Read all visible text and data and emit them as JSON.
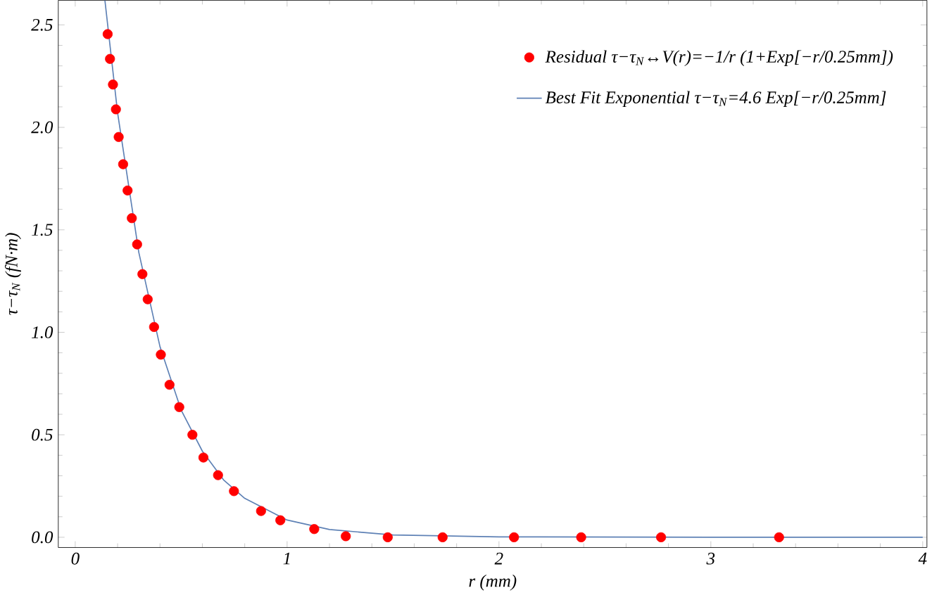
{
  "chart_data": {
    "type": "scatter",
    "xlabel": "r (mm)",
    "ylabel": "τ−τ$_{N}$  (fN·m)",
    "xlim": [
      -0.08,
      4.02
    ],
    "ylim": [
      -0.05,
      2.62
    ],
    "xticks": [
      0,
      1,
      2,
      3,
      4
    ],
    "yticks": [
      {
        "value": 0,
        "label": "0.0"
      },
      {
        "value": 0.5,
        "label": "0.5"
      },
      {
        "value": 1,
        "label": "1.0"
      },
      {
        "value": 1.5,
        "label": "1.5"
      },
      {
        "value": 2,
        "label": "2.0"
      },
      {
        "value": 2.5,
        "label": "2.5"
      }
    ],
    "grid": false,
    "legend": "top right",
    "series": [
      {
        "name": "Residual  τ−τ$_{N}$↔V(r)=−1/r (1+Exp[−r/0.25mm])",
        "marker": "circle",
        "color": "#ff0000",
        "x": [
          0.153,
          0.164,
          0.178,
          0.192,
          0.205,
          0.226,
          0.247,
          0.267,
          0.292,
          0.317,
          0.342,
          0.372,
          0.404,
          0.445,
          0.491,
          0.553,
          0.605,
          0.674,
          0.749,
          0.877,
          0.968,
          1.128,
          1.277,
          1.475,
          1.734,
          2.071,
          2.388,
          2.765,
          3.322
        ],
        "values": [
          2.455,
          2.334,
          2.209,
          2.088,
          1.953,
          1.82,
          1.692,
          1.557,
          1.429,
          1.284,
          1.161,
          1.026,
          0.891,
          0.744,
          0.635,
          0.5,
          0.389,
          0.303,
          0.225,
          0.128,
          0.083,
          0.04,
          0.005,
          0.0,
          0.0,
          0.0,
          0.0,
          0.0,
          0.0
        ]
      },
      {
        "name": "Best Fit Exponential τ−τ$_{N}$=4.6 Exp[−r/0.25mm]",
        "type": "line",
        "marker": "none",
        "line_style": "solid",
        "color": "#5e81b5",
        "x": [
          0.14,
          0.2,
          0.3,
          0.4,
          0.5,
          0.6,
          0.7,
          0.8,
          1.0,
          1.2,
          1.5,
          2.0,
          3.0,
          4.0
        ],
        "values": [
          2.62,
          2.07,
          1.39,
          0.93,
          0.62,
          0.42,
          0.28,
          0.19,
          0.084,
          0.038,
          0.011,
          0.002,
          0.0,
          0.0
        ]
      }
    ]
  }
}
